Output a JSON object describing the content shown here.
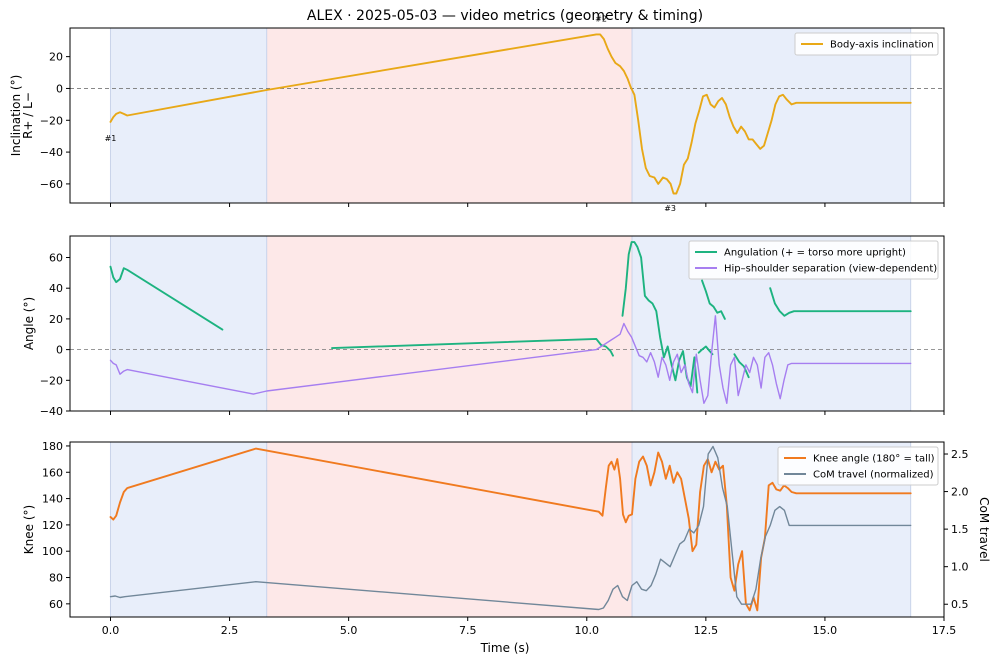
{
  "title": "ALEX · 2025-05-03 — video metrics (geometry & timing)",
  "colors": {
    "blue_band": "#e8eefa",
    "red_band": "#fde8e8",
    "inclination": "#e8a817",
    "angulation": "#1db380",
    "separation": "#a67ef0",
    "knee": "#f07a1f",
    "com": "#718799"
  },
  "x_axis": {
    "label": "Time (s)",
    "range": [
      -0.85,
      17.5
    ],
    "ticks": [
      0.0,
      2.5,
      5.0,
      7.5,
      10.0,
      12.5,
      15.0,
      17.5
    ],
    "tick_labels": [
      "0.0",
      "2.5",
      "5.0",
      "7.5",
      "10.0",
      "12.5",
      "15.0",
      "17.5"
    ]
  },
  "phases": [
    {
      "from": 0.0,
      "to": 3.28,
      "color": "blue"
    },
    {
      "from": 3.28,
      "to": 10.95,
      "color": "red"
    },
    {
      "from": 10.95,
      "to": 16.8,
      "color": "blue"
    }
  ],
  "chart_data": [
    {
      "type": "line",
      "ylabel": "Inclination (°)\nR+ / L−",
      "ylim": [
        -72,
        38
      ],
      "yticks": [
        20,
        0,
        -20,
        -40,
        -60
      ],
      "ytick_labels": [
        "20",
        "0",
        "−20",
        "−40",
        "−60"
      ],
      "legend_position": "top-right",
      "zero_line": true,
      "annotations": [
        {
          "text": "#1",
          "x": 0.0,
          "y": -31
        },
        {
          "text": "#2",
          "x": 10.3,
          "y": 44
        },
        {
          "text": "#3",
          "x": 11.75,
          "y": -75
        }
      ],
      "series": [
        {
          "name": "Body-axis inclination",
          "color": "inclination",
          "x": [
            0.0,
            0.06,
            0.12,
            0.2,
            0.28,
            0.35,
            3.28,
            10.2,
            10.28,
            10.36,
            10.44,
            10.52,
            10.6,
            10.7,
            10.78,
            10.86,
            10.92,
            11.0,
            11.08,
            11.16,
            11.24,
            11.32,
            11.42,
            11.5,
            11.6,
            11.68,
            11.76,
            11.82,
            11.88,
            11.96,
            12.04,
            12.12,
            12.2,
            12.28,
            12.36,
            12.44,
            12.52,
            12.6,
            12.68,
            12.76,
            12.84,
            12.92,
            13.0,
            13.08,
            13.16,
            13.24,
            13.32,
            13.4,
            13.48,
            13.56,
            13.64,
            13.72,
            13.8,
            13.88,
            13.96,
            14.04,
            14.12,
            14.2,
            14.3,
            14.4,
            16.8
          ],
          "y": [
            -21,
            -18,
            -16,
            -15,
            -16,
            -17,
            -1,
            34,
            34,
            31,
            25,
            20,
            16,
            14,
            11,
            6,
            1,
            -4,
            -20,
            -38,
            -50,
            -55,
            -56,
            -60,
            -56,
            -57,
            -60,
            -66,
            -66,
            -60,
            -48,
            -44,
            -34,
            -22,
            -14,
            -5,
            -4,
            -10,
            -12,
            -8,
            -6,
            -10,
            -18,
            -24,
            -28,
            -24,
            -27,
            -32,
            -32,
            -35,
            -38,
            -36,
            -28,
            -20,
            -10,
            -5,
            -4,
            -7,
            -10,
            -9,
            -9
          ]
        }
      ]
    },
    {
      "type": "line",
      "ylabel": "Angle (°)",
      "ylim": [
        -40,
        74
      ],
      "yticks": [
        60,
        40,
        20,
        0,
        -20,
        -40
      ],
      "ytick_labels": [
        "60",
        "40",
        "20",
        "0",
        "−20",
        "−40"
      ],
      "legend_position": "top-right",
      "zero_line": true,
      "series": [
        {
          "name": "Angulation (+ = torso more upright)",
          "color": "angulation",
          "segments": [
            {
              "x": [
                0.0,
                0.06,
                0.12,
                0.2,
                0.28,
                0.35,
                2.35
              ],
              "y": [
                54,
                47,
                44,
                46,
                53,
                52,
                13
              ]
            },
            {
              "x": [
                4.65,
                10.2,
                10.3,
                10.4,
                10.5,
                10.55
              ],
              "y": [
                1,
                7,
                3,
                2,
                -1,
                -4
              ]
            },
            {
              "x": [
                10.75,
                10.82,
                10.88,
                10.94,
                11.0,
                11.06,
                11.14,
                11.22,
                11.3,
                11.38,
                11.46,
                11.54,
                11.62,
                11.7,
                11.78,
                11.86,
                11.94,
                12.02,
                12.1,
                12.18,
                12.26,
                12.32
              ],
              "y": [
                22,
                40,
                62,
                70,
                70,
                67,
                60,
                35,
                32,
                30,
                25,
                8,
                -5,
                2,
                -10,
                -20,
                -7,
                -1,
                -18,
                -24,
                -5,
                -28
              ]
            },
            {
              "x": [
                12.35,
                12.42,
                12.5,
                12.58,
                12.64
              ],
              "y": [
                -2,
                0,
                2,
                -1,
                -3
              ]
            },
            {
              "x": [
                12.42,
                12.5,
                12.58,
                12.66,
                12.74,
                12.82,
                12.9
              ],
              "y": [
                45,
                38,
                30,
                28,
                24,
                25,
                20
              ]
            },
            {
              "x": [
                13.1,
                13.2,
                13.3,
                13.4
              ],
              "y": [
                -3,
                -8,
                -11,
                -18
              ]
            },
            {
              "x": [
                13.85,
                13.95,
                14.05,
                14.15,
                14.25,
                14.35,
                16.8
              ],
              "y": [
                40,
                30,
                25,
                22,
                24,
                25,
                25
              ]
            }
          ]
        },
        {
          "name": "Hip–shoulder separation (view-dependent)",
          "color": "separation",
          "x": [
            0.0,
            0.06,
            0.12,
            0.2,
            0.28,
            0.35,
            3.0,
            3.28,
            10.2,
            10.3,
            10.4,
            10.5,
            10.6,
            10.7,
            10.78,
            10.86,
            10.94,
            11.02,
            11.1,
            11.18,
            11.26,
            11.34,
            11.42,
            11.5,
            11.58,
            11.66,
            11.74,
            11.82,
            11.9,
            11.98,
            12.06,
            12.14,
            12.22,
            12.3,
            12.38,
            12.46,
            12.54,
            12.62,
            12.7,
            12.78,
            12.86,
            12.94,
            13.02,
            13.1,
            13.18,
            13.26,
            13.34,
            13.42,
            13.5,
            13.58,
            13.66,
            13.74,
            13.82,
            13.9,
            13.98,
            14.06,
            14.14,
            14.22,
            14.3,
            14.4,
            16.8
          ],
          "y": [
            -7,
            -9,
            -10,
            -16,
            -14,
            -13,
            -29,
            -27,
            0,
            2,
            4,
            6,
            8,
            10,
            17,
            12,
            8,
            2,
            -4,
            -5,
            -8,
            -2,
            -8,
            -18,
            -5,
            -10,
            -20,
            -8,
            -3,
            -15,
            -10,
            -22,
            -28,
            -3,
            -20,
            -35,
            -30,
            -2,
            22,
            -10,
            -25,
            -35,
            -10,
            -5,
            -30,
            -20,
            -10,
            -15,
            -5,
            -10,
            -25,
            -5,
            -2,
            -10,
            -22,
            -32,
            -20,
            -10,
            -9,
            -9,
            -9
          ]
        }
      ]
    },
    {
      "type": "line",
      "ylabel": "Knee (°)",
      "ylim": [
        50,
        183
      ],
      "yticks": [
        180,
        160,
        140,
        120,
        100,
        80,
        60
      ],
      "ytick_labels": [
        "180",
        "160",
        "140",
        "120",
        "100",
        "80",
        "60"
      ],
      "y2label": "CoM travel",
      "y2lim": [
        0.33,
        2.66
      ],
      "y2ticks": [
        2.5,
        2.0,
        1.5,
        1.0,
        0.5
      ],
      "y2tick_labels": [
        "2.5",
        "2.0",
        "1.5",
        "1.0",
        "0.5"
      ],
      "legend_position": "top-right",
      "series": [
        {
          "name": "Knee angle (180° = tall)",
          "color": "knee",
          "x": [
            0.0,
            0.06,
            0.12,
            0.2,
            0.28,
            0.35,
            3.05,
            10.25,
            10.33,
            10.4,
            10.46,
            10.52,
            10.58,
            10.64,
            10.7,
            10.76,
            10.82,
            10.88,
            10.95,
            11.02,
            11.1,
            11.18,
            11.26,
            11.34,
            11.42,
            11.5,
            11.58,
            11.66,
            11.74,
            11.82,
            11.9,
            11.98,
            12.06,
            12.14,
            12.22,
            12.3,
            12.38,
            12.46,
            12.54,
            12.62,
            12.7,
            12.78,
            12.86,
            12.94,
            13.02,
            13.1,
            13.18,
            13.26,
            13.34,
            13.42,
            13.5,
            13.58,
            13.66,
            13.74,
            13.82,
            13.9,
            13.98,
            14.06,
            14.14,
            14.22,
            14.3,
            14.4,
            16.8
          ],
          "y": [
            126,
            124,
            127,
            137,
            145,
            148,
            178,
            130,
            127,
            148,
            165,
            168,
            162,
            170,
            155,
            128,
            122,
            127,
            128,
            155,
            168,
            172,
            165,
            150,
            160,
            175,
            168,
            155,
            165,
            152,
            160,
            155,
            140,
            125,
            100,
            105,
            145,
            165,
            170,
            160,
            168,
            162,
            165,
            135,
            80,
            70,
            90,
            100,
            60,
            55,
            65,
            55,
            95,
            110,
            150,
            152,
            147,
            146,
            150,
            148,
            145,
            144,
            144
          ]
        },
        {
          "name": "CoM travel (normalized)",
          "color": "com",
          "axis": "right",
          "x": [
            0.0,
            0.1,
            0.2,
            0.3,
            3.05,
            10.25,
            10.35,
            10.45,
            10.55,
            10.65,
            10.75,
            10.85,
            10.95,
            11.05,
            11.15,
            11.25,
            11.35,
            11.45,
            11.55,
            11.65,
            11.75,
            11.85,
            11.95,
            12.05,
            12.15,
            12.25,
            12.35,
            12.45,
            12.55,
            12.65,
            12.75,
            12.85,
            12.95,
            13.05,
            13.15,
            13.25,
            13.35,
            13.45,
            13.55,
            13.65,
            13.75,
            13.85,
            13.95,
            14.05,
            14.15,
            14.25,
            14.35,
            14.45,
            16.8
          ],
          "y": [
            0.6,
            0.61,
            0.59,
            0.6,
            0.8,
            0.43,
            0.45,
            0.55,
            0.7,
            0.75,
            0.6,
            0.55,
            0.75,
            0.8,
            0.7,
            0.68,
            0.75,
            0.9,
            1.1,
            1.05,
            1.0,
            1.15,
            1.3,
            1.35,
            1.5,
            1.45,
            1.55,
            1.8,
            2.5,
            2.6,
            2.45,
            2.05,
            1.8,
            1.2,
            0.6,
            0.5,
            0.5,
            0.5,
            0.7,
            1.1,
            1.4,
            1.55,
            1.75,
            1.8,
            1.75,
            1.55,
            1.55,
            1.55,
            1.55
          ]
        }
      ]
    }
  ]
}
